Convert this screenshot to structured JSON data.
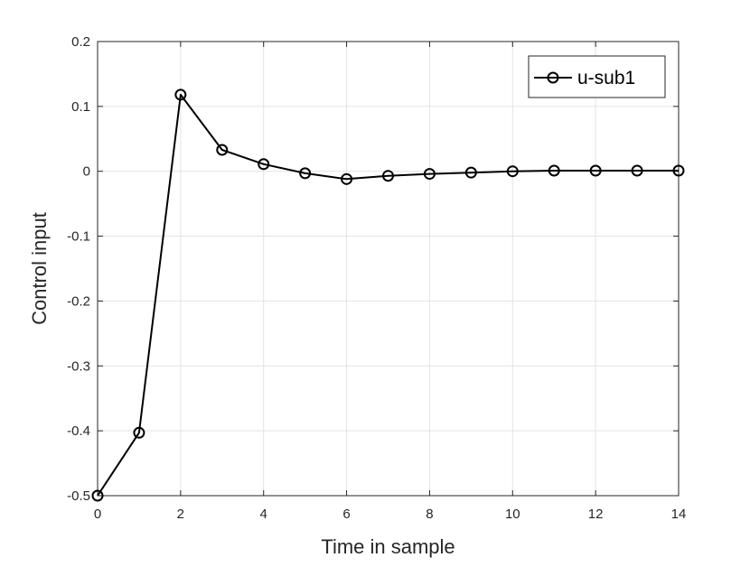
{
  "chart_data": {
    "type": "line",
    "title": "",
    "xlabel": "Time in sample",
    "ylabel": "Control input",
    "xlim": [
      0,
      14
    ],
    "ylim": [
      -0.5,
      0.2
    ],
    "x_ticks": [
      "0",
      "2",
      "4",
      "6",
      "8",
      "10",
      "12",
      "14"
    ],
    "y_ticks": [
      "0.2",
      "0.1",
      "0",
      "-0.1",
      "-0.2",
      "-0.3",
      "-0.4",
      "-0.5"
    ],
    "grid": true,
    "legend_position": "top-right",
    "series": [
      {
        "name": "u-sub1",
        "marker": "circle",
        "color": "#000000",
        "x": [
          0,
          1,
          2,
          3,
          4,
          5,
          6,
          7,
          8,
          9,
          10,
          11,
          12,
          13,
          14
        ],
        "y": [
          -0.5,
          -0.403,
          0.118,
          0.033,
          0.011,
          -0.003,
          -0.012,
          -0.007,
          -0.004,
          -0.002,
          0.0,
          0.001,
          0.001,
          0.001,
          0.001
        ]
      }
    ]
  }
}
